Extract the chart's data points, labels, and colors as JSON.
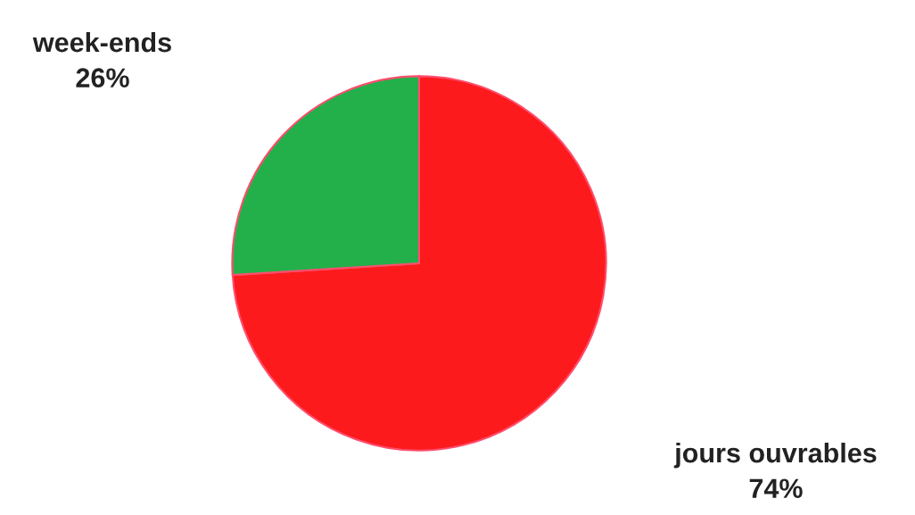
{
  "chart_data": {
    "type": "pie",
    "categories": [
      "jours ouvrables",
      "week-ends"
    ],
    "values": [
      74,
      26
    ],
    "value_labels": [
      "74%",
      "26%"
    ],
    "colors": [
      "#fc1a1c",
      "#23b04b"
    ]
  }
}
